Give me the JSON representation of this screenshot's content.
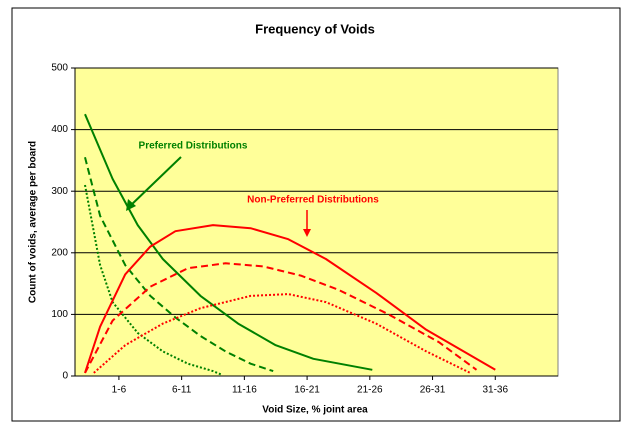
{
  "chart_data": {
    "type": "line",
    "title": "Frequency of Voids",
    "x_label": "Void Size, % joint area",
    "y_label": "Count of voids, average per board",
    "xlim": [
      0,
      38.5
    ],
    "xticks": [
      {
        "value": 3.5,
        "label": "1-6"
      },
      {
        "value": 8.5,
        "label": "6-11"
      },
      {
        "value": 13.5,
        "label": "11-16"
      },
      {
        "value": 18.5,
        "label": "16-21"
      },
      {
        "value": 23.5,
        "label": "21-26"
      },
      {
        "value": 28.5,
        "label": "26-31"
      },
      {
        "value": 33.5,
        "label": "31-36"
      }
    ],
    "ylim": [
      0,
      500
    ],
    "yticks": [
      0,
      100,
      200,
      300,
      400,
      500
    ],
    "grid": true,
    "background": "#ffff99",
    "annotations": [
      {
        "text": "Preferred Distributions",
        "color": "#008000"
      },
      {
        "text": "Non-Preferred Distributions",
        "color": "#ff0000"
      }
    ],
    "series": [
      {
        "color": "#008000",
        "dash": "solid",
        "x": [
          0.8,
          3,
          5,
          7,
          10,
          13,
          16,
          19,
          23.7
        ],
        "values": [
          425,
          320,
          245,
          190,
          130,
          85,
          50,
          28,
          10
        ]
      },
      {
        "color": "#008000",
        "dash": "dashed",
        "x": [
          0.8,
          2,
          4,
          6,
          8,
          10,
          12,
          14,
          15.8
        ],
        "values": [
          355,
          260,
          180,
          130,
          95,
          65,
          40,
          20,
          8
        ]
      },
      {
        "color": "#008000",
        "dash": "dotted",
        "x": [
          0.8,
          2,
          3,
          5,
          7,
          9,
          11,
          11.7
        ],
        "values": [
          310,
          180,
          120,
          70,
          40,
          20,
          8,
          2
        ]
      },
      {
        "color": "#ff0000",
        "dash": "solid",
        "x": [
          0.8,
          2,
          4,
          6,
          8,
          11,
          14,
          17,
          20,
          24,
          28,
          33.5
        ],
        "values": [
          5,
          80,
          165,
          210,
          235,
          245,
          240,
          222,
          190,
          135,
          75,
          10
        ]
      },
      {
        "color": "#ff0000",
        "dash": "dashed",
        "x": [
          0.8,
          3,
          6,
          9,
          12,
          15,
          18,
          21,
          25,
          29,
          32
        ],
        "values": [
          5,
          90,
          145,
          175,
          183,
          178,
          163,
          140,
          100,
          55,
          10
        ]
      },
      {
        "color": "#ff0000",
        "dash": "dotted",
        "x": [
          1.5,
          4,
          7,
          10,
          14,
          17,
          20,
          24,
          28,
          31.5
        ],
        "values": [
          5,
          50,
          85,
          110,
          130,
          133,
          120,
          85,
          40,
          5
        ]
      }
    ]
  }
}
